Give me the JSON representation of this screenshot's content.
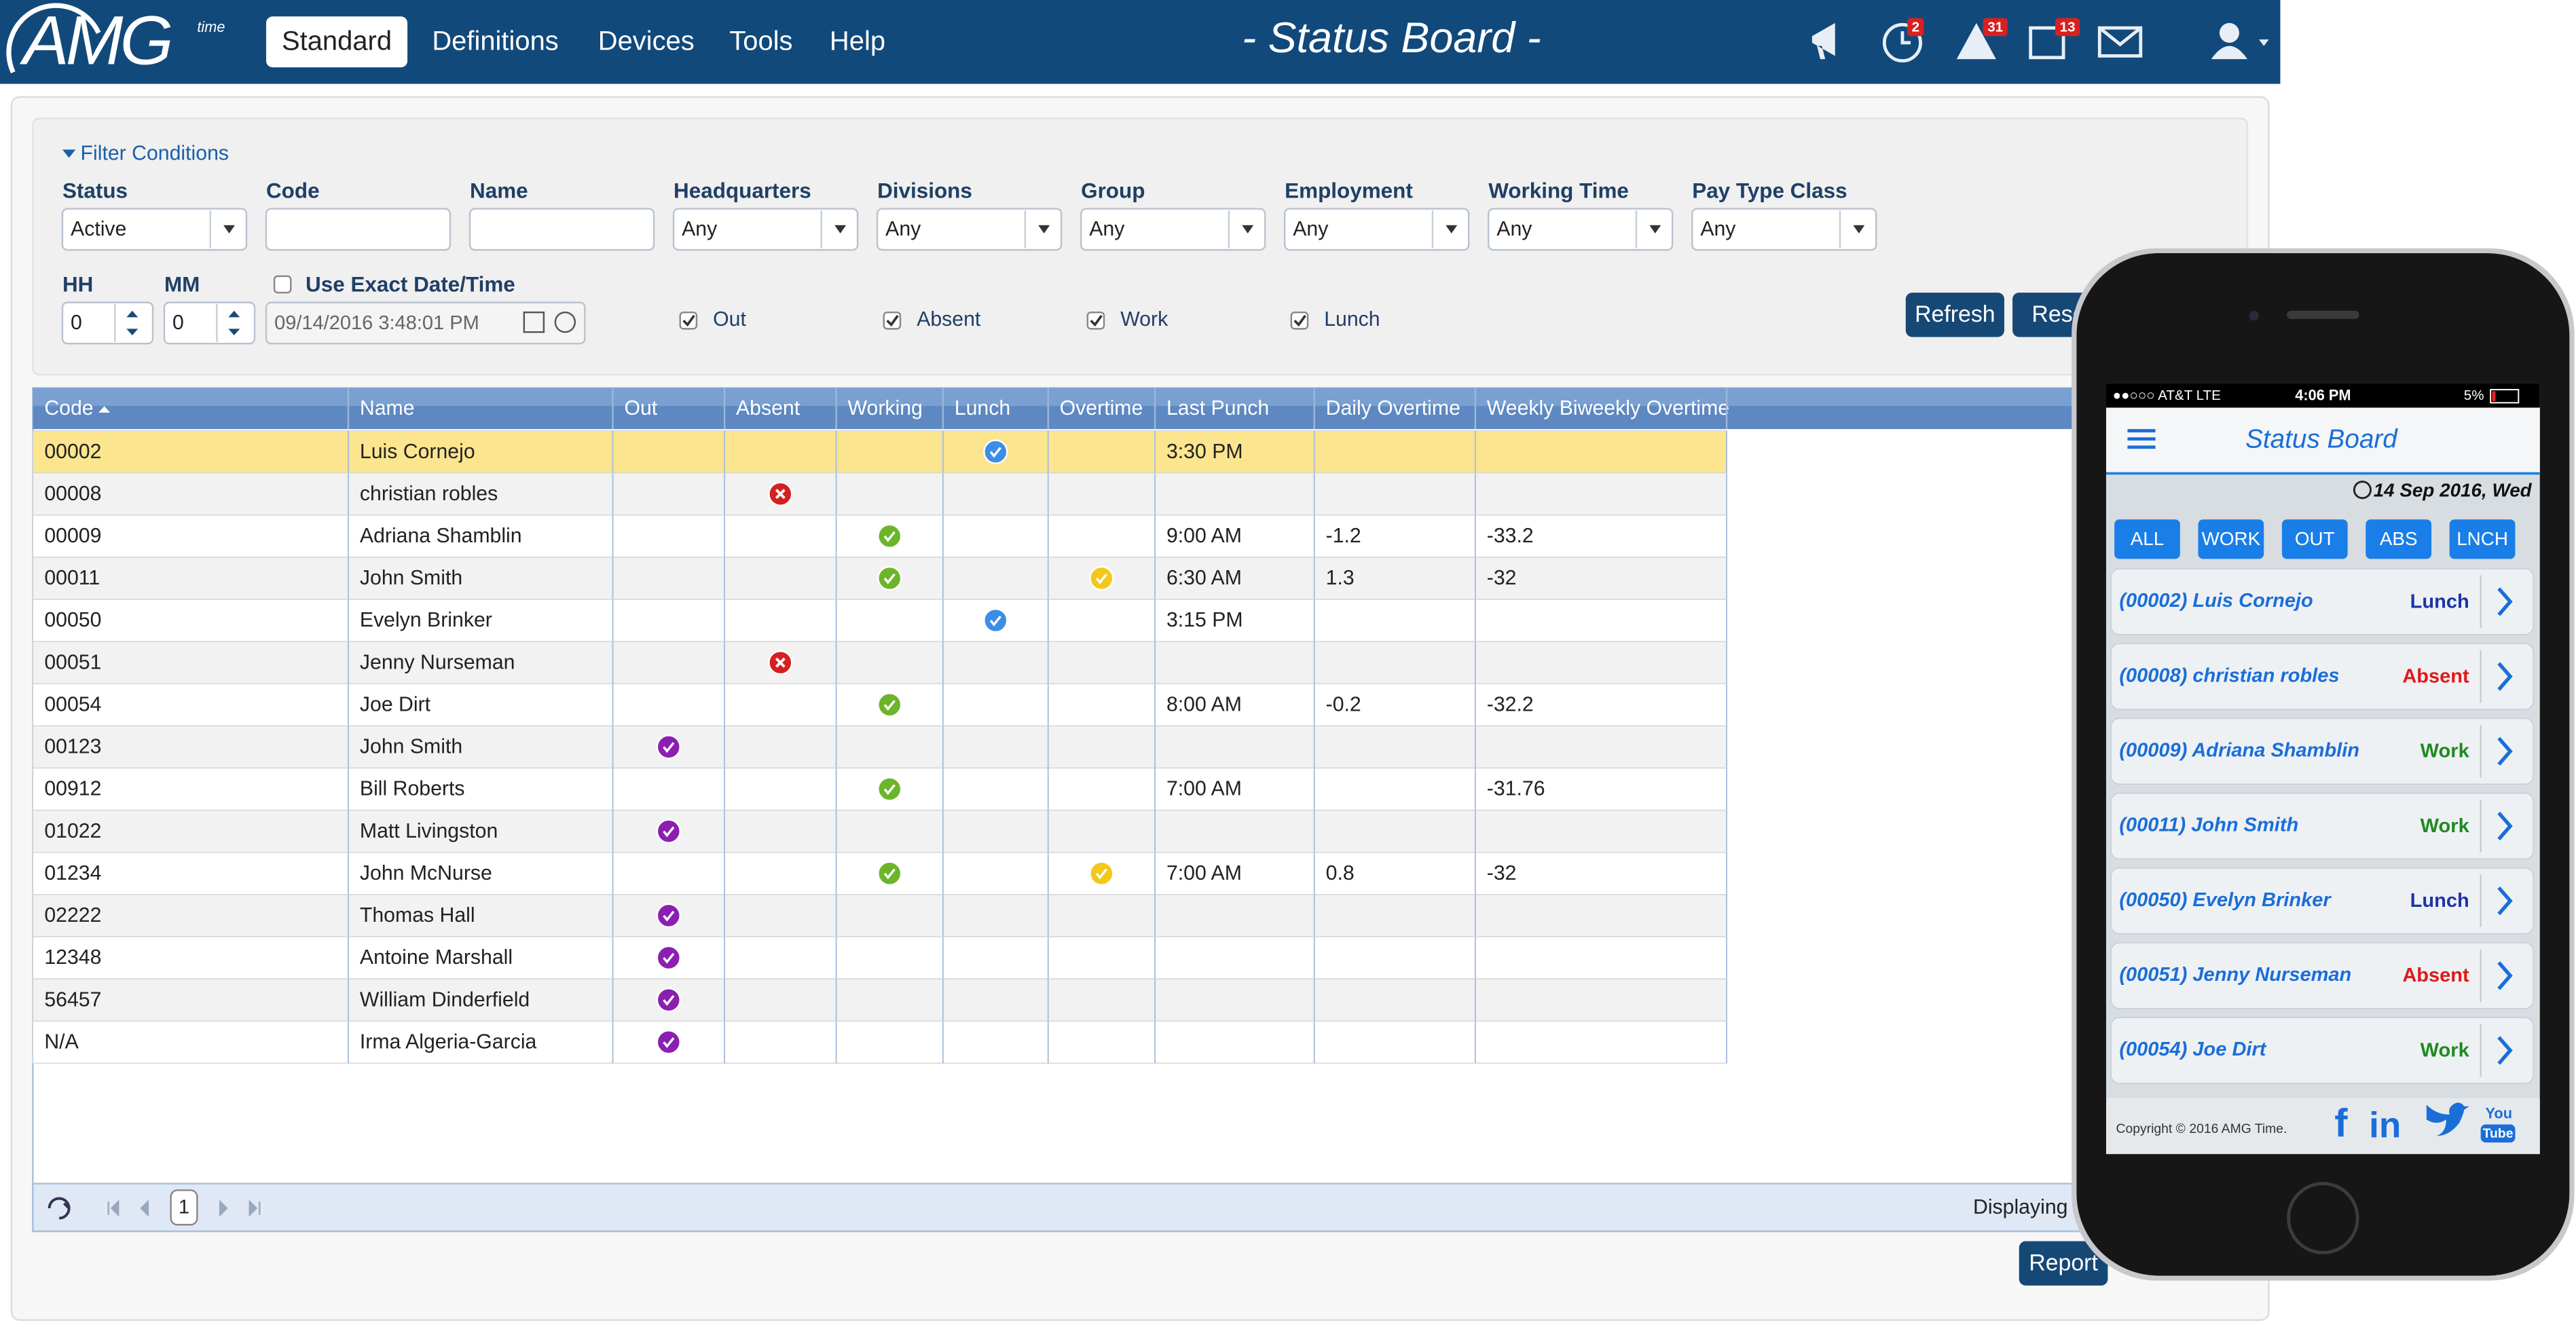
{
  "header": {
    "logo": "AMG",
    "logo_sub": "time",
    "nav": [
      "Standard",
      "Definitions",
      "Devices",
      "Tools",
      "Help"
    ],
    "active_nav": 0,
    "title": "- Status Board -",
    "badges": [
      "2",
      "31",
      "13"
    ]
  },
  "filters": {
    "toggle": "Filter Conditions",
    "fields": [
      {
        "label": "Status",
        "value": "Active"
      },
      {
        "label": "Code"
      },
      {
        "label": "Name"
      },
      {
        "label": "Headquarters",
        "value": "Any"
      },
      {
        "label": "Divisions",
        "value": "Any"
      },
      {
        "label": "Group",
        "value": "Any"
      },
      {
        "label": "Employment",
        "value": "Any"
      },
      {
        "label": "Working Time",
        "value": "Any"
      },
      {
        "label": "Pay Type Class",
        "value": "Any"
      }
    ],
    "hh": {
      "label": "HH",
      "value": 0
    },
    "mm": {
      "label": "MM",
      "value": 0
    },
    "exact": {
      "label": "Use Exact Date/Time",
      "checked": false
    },
    "datetime": "09/14/2016 3:48:01 PM",
    "checks": [
      {
        "label": "Out",
        "checked": true
      },
      {
        "label": "Absent",
        "checked": true
      },
      {
        "label": "Work",
        "checked": true
      },
      {
        "label": "Lunch",
        "checked": true
      }
    ],
    "buttons": [
      "Refresh",
      "Reset"
    ]
  },
  "table": {
    "columns": [
      "Code",
      "Name",
      "Out",
      "Absent",
      "Working",
      "Lunch",
      "Overtime",
      "Last Punch",
      "Daily Overtime",
      "Weekly Biweekly Overtime"
    ],
    "icon_colors": {
      "Out": "#8a1fb0",
      "Absent": "#d42020",
      "Working": "#6cb52a",
      "Lunch": "#3a8ee6",
      "Overtime": "#f2c81a"
    },
    "selected_row": 0,
    "rows": [
      {
        "code": "00002",
        "name": "Luis Cornejo",
        "status": "Lunch",
        "last_punch": "3:30 PM"
      },
      {
        "code": "00008",
        "name": "christian robles",
        "status": "Absent"
      },
      {
        "code": "00009",
        "name": "Adriana Shamblin",
        "status": "Working",
        "last_punch": "9:00 AM",
        "daily": -1.2,
        "weekly": -33.2
      },
      {
        "code": "00011",
        "name": "John Smith",
        "status": "Working",
        "overtime": true,
        "last_punch": "6:30 AM",
        "daily": 1.3,
        "weekly": -32
      },
      {
        "code": "00050",
        "name": "Evelyn Brinker",
        "status": "Lunch",
        "last_punch": "3:15 PM"
      },
      {
        "code": "00051",
        "name": "Jenny Nurseman",
        "status": "Absent"
      },
      {
        "code": "00054",
        "name": "Joe Dirt",
        "status": "Working",
        "last_punch": "8:00 AM",
        "daily": -0.2,
        "weekly": -32.2
      },
      {
        "code": "00123",
        "name": "John Smith",
        "status": "Out"
      },
      {
        "code": "00912",
        "name": "Bill Roberts",
        "status": "Working",
        "last_punch": "7:00 AM",
        "weekly": -31.76
      },
      {
        "code": "01022",
        "name": "Matt Livingston",
        "status": "Out"
      },
      {
        "code": "01234",
        "name": "John McNurse",
        "status": "Working",
        "overtime": true,
        "last_punch": "7:00 AM",
        "daily": 0.8,
        "weekly": -32
      },
      {
        "code": "02222",
        "name": "Thomas Hall",
        "status": "Out"
      },
      {
        "code": "12348",
        "name": "Antoine Marshall",
        "status": "Out"
      },
      {
        "code": "56457",
        "name": "William Dinderfield",
        "status": "Out"
      },
      {
        "code": "N/A",
        "name": "Irma Algeria-Garcia",
        "status": "Out"
      }
    ],
    "page": "1",
    "displaying": "Displaying",
    "report": "Report"
  },
  "phone": {
    "carrier": "●●○○○ AT&T  LTE",
    "time": "4:06 PM",
    "battery": "5%",
    "title": "Status Board",
    "date": "14 Sep 2016, Wed",
    "tabs": [
      "ALL",
      "WORK",
      "OUT",
      "ABS",
      "LNCH"
    ],
    "items": [
      {
        "name": "(00002) Luis Cornejo",
        "status": "Lunch",
        "color": "#1c34a8"
      },
      {
        "name": "(00008) christian robles",
        "status": "Absent",
        "color": "#e01818"
      },
      {
        "name": "(00009) Adriana Shamblin",
        "status": "Work",
        "color": "#1f8a1f"
      },
      {
        "name": "(00011) John Smith",
        "status": "Work",
        "color": "#1f8a1f"
      },
      {
        "name": "(00050) Evelyn Brinker",
        "status": "Lunch",
        "color": "#1c34a8"
      },
      {
        "name": "(00051) Jenny Nurseman",
        "status": "Absent",
        "color": "#e01818"
      },
      {
        "name": "(00054) Joe Dirt",
        "status": "Work",
        "color": "#1f8a1f"
      }
    ],
    "copyright": "Copyright © 2016 AMG Time.",
    "social": [
      "f",
      "in",
      "You",
      "Tube"
    ]
  }
}
